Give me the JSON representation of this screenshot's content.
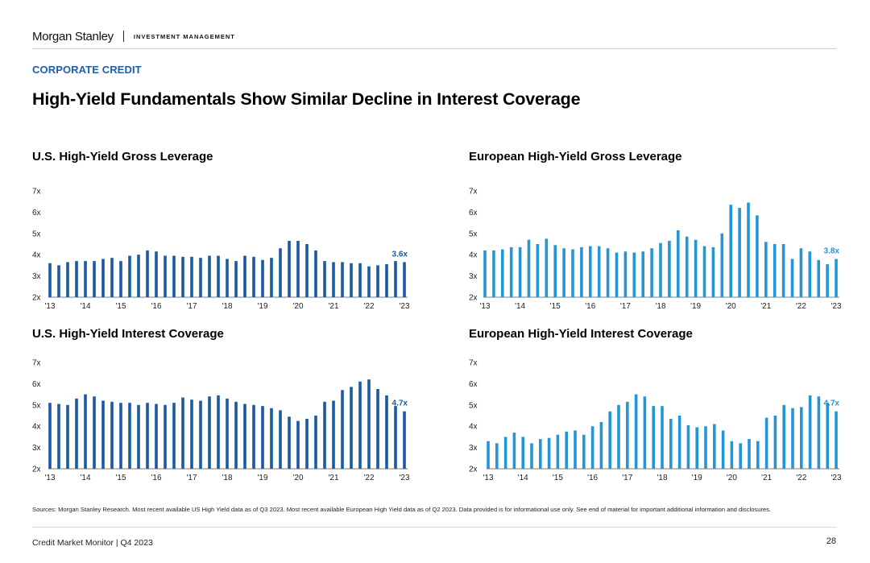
{
  "header": {
    "logo": "Morgan Stanley",
    "sub": "INVESTMENT MANAGEMENT"
  },
  "section_label": "CORPORATE CREDIT",
  "title": "High-Yield Fundamentals Show Similar Decline in Interest Coverage",
  "charts": [
    {
      "title": "U.S. High-Yield Gross Leverage"
    },
    {
      "title": "European High-Yield Gross Leverage"
    },
    {
      "title": "U.S. High-Yield Interest Coverage"
    },
    {
      "title": "European High-Yield Interest Coverage"
    }
  ],
  "chart_data": [
    {
      "type": "bar",
      "title": "U.S. High-Yield Gross Leverage",
      "color": "#1a5aa0",
      "ylim": [
        2,
        7
      ],
      "yticks": [
        "2x",
        "3x",
        "4x",
        "5x",
        "6x",
        "7x"
      ],
      "xticks": [
        "'13",
        "'14",
        "'15",
        "'16",
        "'17",
        "'18",
        "'19",
        "'20",
        "'21",
        "'22",
        "'23"
      ],
      "callout": "3.6x",
      "values": [
        3.6,
        3.5,
        3.65,
        3.7,
        3.7,
        3.7,
        3.8,
        3.85,
        3.7,
        3.95,
        4.0,
        4.2,
        4.15,
        3.95,
        3.95,
        3.9,
        3.9,
        3.85,
        3.95,
        3.95,
        3.8,
        3.7,
        3.95,
        3.9,
        3.75,
        3.85,
        4.3,
        4.65,
        4.65,
        4.5,
        4.2,
        3.7,
        3.65,
        3.65,
        3.6,
        3.6,
        3.45,
        3.5,
        3.55,
        3.7,
        3.65
      ]
    },
    {
      "type": "bar",
      "title": "European High-Yield Gross Leverage",
      "color": "#2496d8",
      "ylim": [
        2,
        7
      ],
      "yticks": [
        "2x",
        "3x",
        "4x",
        "5x",
        "6x",
        "7x"
      ],
      "xticks": [
        "'13",
        "'14",
        "'15",
        "'16",
        "'17",
        "'18",
        "'19",
        "'20",
        "'21",
        "'22",
        "'23"
      ],
      "callout": "3.8x",
      "values": [
        4.2,
        4.2,
        4.25,
        4.35,
        4.35,
        4.7,
        4.5,
        4.75,
        4.45,
        4.3,
        4.25,
        4.35,
        4.4,
        4.4,
        4.3,
        4.1,
        4.15,
        4.1,
        4.15,
        4.3,
        4.55,
        4.65,
        5.15,
        4.85,
        4.7,
        4.4,
        4.35,
        5.0,
        6.35,
        6.2,
        6.45,
        5.85,
        4.6,
        4.5,
        4.5,
        3.8,
        4.3,
        4.15,
        3.75,
        3.55,
        3.8
      ]
    },
    {
      "type": "bar",
      "title": "U.S. High-Yield Interest Coverage",
      "color": "#1a5aa0",
      "ylim": [
        2,
        7
      ],
      "yticks": [
        "2x",
        "3x",
        "4x",
        "5x",
        "6x",
        "7x"
      ],
      "xticks": [
        "'13",
        "'14",
        "'15",
        "'16",
        "'17",
        "'18",
        "'19",
        "'20",
        "'21",
        "'22",
        "'23"
      ],
      "callout": "4.7x",
      "values": [
        5.1,
        5.05,
        5.0,
        5.3,
        5.5,
        5.4,
        5.2,
        5.15,
        5.1,
        5.1,
        5.0,
        5.1,
        5.05,
        5.0,
        5.1,
        5.35,
        5.25,
        5.2,
        5.4,
        5.45,
        5.3,
        5.15,
        5.05,
        5.0,
        4.95,
        4.85,
        4.75,
        4.45,
        4.25,
        4.35,
        4.5,
        5.15,
        5.2,
        5.7,
        5.85,
        6.1,
        6.2,
        5.75,
        5.45,
        4.95,
        4.7
      ]
    },
    {
      "type": "bar",
      "title": "European High-Yield Interest Coverage",
      "color": "#2496d8",
      "ylim": [
        2,
        7
      ],
      "yticks": [
        "2x",
        "3x",
        "4x",
        "5x",
        "6x",
        "7x"
      ],
      "xticks": [
        "'13",
        "'14",
        "'15",
        "'16",
        "'17",
        "'18",
        "'19",
        "'20",
        "'21",
        "'22",
        "'23"
      ],
      "callout": "4.7x",
      "values": [
        3.3,
        3.2,
        3.5,
        3.7,
        3.5,
        3.2,
        3.4,
        3.45,
        3.6,
        3.75,
        3.8,
        3.6,
        4.0,
        4.2,
        4.7,
        5.0,
        5.15,
        5.5,
        5.4,
        4.95,
        4.95,
        4.35,
        4.5,
        4.05,
        3.95,
        4.0,
        4.1,
        3.8,
        3.3,
        3.2,
        3.4,
        3.3,
        4.4,
        4.5,
        5.0,
        4.85,
        4.9,
        5.45,
        5.4,
        5.1,
        4.7
      ]
    }
  ],
  "sources": "Sources: Morgan Stanley Research. Most recent available US High Yield data as of Q3 2023. Most recent available European High Yield data as of Q2 2023. Data provided is for informational use only. See end of material for important additional information and disclosures.",
  "footer": "Credit Market Monitor | Q4 2023",
  "page_number": "28"
}
